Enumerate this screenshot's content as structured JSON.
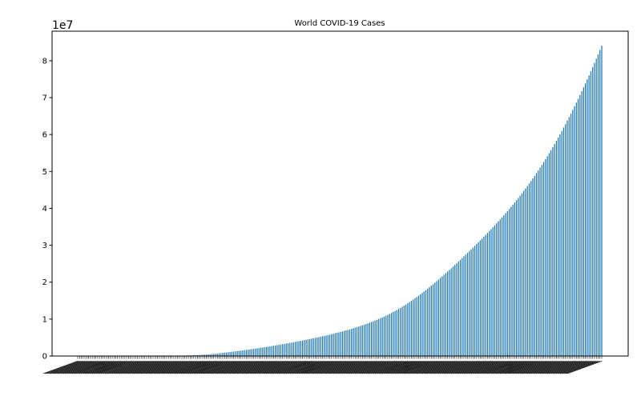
{
  "chart_data": {
    "type": "bar",
    "title": "World COVID-19 Cases",
    "xlabel": "",
    "ylabel": "",
    "y_offset_label": "1e7",
    "ylim": [
      0,
      8.8
    ],
    "y_ticks": [
      "0",
      "1",
      "2",
      "3",
      "4",
      "5",
      "6",
      "7",
      "8"
    ],
    "bar_color": "#1f77b4",
    "grid": false,
    "legend": "none",
    "series": [
      {
        "values": [
          0.0001,
          0.0001,
          0.0001,
          0.0001,
          0.0001,
          0.0001,
          0.0001,
          0.0001,
          0.0001,
          0.0001,
          0.0001,
          0.0001,
          0.0001,
          0.0001,
          0.0001,
          0.0001,
          0.0001,
          0.0001,
          0.0001,
          0.0001,
          0.0002,
          0.0002,
          0.0002,
          0.0002,
          0.0002,
          0.0002,
          0.0002,
          0.0002,
          0.0002,
          0.0003,
          0.0003,
          0.0003,
          0.0003,
          0.0003,
          0.0004,
          0.0004,
          0.0004,
          0.0005,
          0.0005,
          0.0005,
          0.0006,
          0.0006,
          0.0007,
          0.0008,
          0.0009,
          0.0011,
          0.0013,
          0.0016,
          0.0019,
          0.0023,
          0.0028,
          0.0033,
          0.0039,
          0.0046,
          0.0054,
          0.0063,
          0.0073,
          0.0084,
          0.0096,
          0.0109,
          0.0124,
          0.014,
          0.0157,
          0.0176,
          0.0196,
          0.0218,
          0.0242,
          0.0268,
          0.0297,
          0.0328,
          0.0362,
          0.0399,
          0.0439,
          0.0482,
          0.0528,
          0.0576,
          0.0627,
          0.068,
          0.0734,
          0.079,
          0.0847,
          0.0905,
          0.0964,
          0.1024,
          0.1085,
          0.1146,
          0.1208,
          0.1271,
          0.1334,
          0.1398,
          0.1463,
          0.1529,
          0.1595,
          0.1662,
          0.173,
          0.1799,
          0.1869,
          0.1939,
          0.2011,
          0.2083,
          0.2157,
          0.2231,
          0.2306,
          0.2382,
          0.2459,
          0.2537,
          0.2616,
          0.2696,
          0.2777,
          0.2858,
          0.2941,
          0.3024,
          0.3109,
          0.3194,
          0.328,
          0.3367,
          0.3456,
          0.3545,
          0.3635,
          0.3726,
          0.3818,
          0.3911,
          0.4005,
          0.4101,
          0.4197,
          0.4294,
          0.4393,
          0.4492,
          0.4593,
          0.4695,
          0.4798,
          0.4903,
          0.5009,
          0.5116,
          0.5225,
          0.5335,
          0.5447,
          0.5561,
          0.5676,
          0.5793,
          0.5912,
          0.6033,
          0.6156,
          0.6281,
          0.6408,
          0.6538,
          0.667,
          0.6804,
          0.6941,
          0.7081,
          0.7223,
          0.7369,
          0.7517,
          0.7669,
          0.7824,
          0.7983,
          0.8145,
          0.8312,
          0.8482,
          0.8657,
          0.8836,
          0.902,
          0.9208,
          0.9402,
          0.9601,
          0.9805,
          1.0015,
          1.0231,
          1.0453,
          1.0681,
          1.0916,
          1.1157,
          1.1405,
          1.166,
          1.1922,
          1.2191,
          1.2467,
          1.2751,
          1.3042,
          1.334,
          1.3646,
          1.3959,
          1.428,
          1.4608,
          1.4943,
          1.5285,
          1.5634,
          1.599,
          1.6352,
          1.6721,
          1.7096,
          1.7477,
          1.7864,
          1.8257,
          1.8655,
          1.9058,
          1.9466,
          1.9879,
          2.0296,
          2.0718,
          2.1144,
          2.1574,
          2.2008,
          2.2446,
          2.2887,
          2.3332,
          2.378,
          2.4231,
          2.4685,
          2.5142,
          2.5602,
          2.6065,
          2.653,
          2.6998,
          2.7469,
          2.7943,
          2.8419,
          2.8898,
          2.938,
          2.9864,
          3.0352,
          3.0842,
          3.1336,
          3.1833,
          3.2333,
          3.2837,
          3.3345,
          3.3857,
          3.4373,
          3.4894,
          3.542,
          3.5951,
          3.6487,
          3.7029,
          3.7577,
          3.8131,
          3.8692,
          3.926,
          3.9835,
          4.0417,
          4.1007,
          4.1606,
          4.2213,
          4.2829,
          4.3454,
          4.4089,
          4.4733,
          4.5388,
          4.6053,
          4.6729,
          4.7416,
          4.8114,
          4.8824,
          4.9546,
          5.028,
          5.1026,
          5.1785,
          5.2557,
          5.3341,
          5.4138,
          5.4948,
          5.5771,
          5.6607,
          5.7456,
          5.8318,
          5.9193,
          6.0081,
          6.0982,
          6.1896,
          6.2823,
          6.3763,
          6.4716,
          6.5682,
          6.6661,
          6.7653,
          6.8658,
          6.9676,
          7.0707,
          7.1751,
          7.2808,
          7.3878,
          7.4961,
          7.6057,
          7.7165,
          7.8286,
          7.942,
          8.0566,
          8.1724,
          8.2894,
          8.4076
        ]
      }
    ]
  }
}
